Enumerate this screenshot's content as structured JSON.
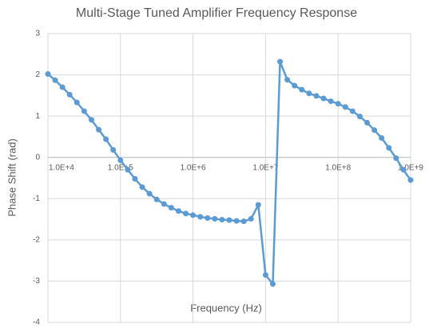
{
  "chart_data": {
    "type": "line",
    "title": "Multi-Stage Tuned Amplifier Frequency Response",
    "xlabel": "Frequency (Hz)",
    "ylabel": "Phase Shift (rad)",
    "xscale": "log",
    "grid": true,
    "xlim": [
      10000,
      1000000000
    ],
    "ylim": [
      -4,
      3
    ],
    "xticks": [
      {
        "value": 10000,
        "label": "1.0E+4"
      },
      {
        "value": 100000,
        "label": "1.0E+5"
      },
      {
        "value": 1000000,
        "label": "1.0E+6"
      },
      {
        "value": 10000000,
        "label": "1.0E+7"
      },
      {
        "value": 100000000,
        "label": "1.0E+8"
      },
      {
        "value": 1000000000,
        "label": "1.0E+9"
      }
    ],
    "yticks": [
      -4,
      -3,
      -2,
      -1,
      0,
      1,
      2,
      3
    ],
    "x": [
      10000,
      12589,
      15849,
      19953,
      25119,
      31623,
      39811,
      50119,
      63096,
      79433,
      100000,
      125893,
      158489,
      199526,
      251189,
      316228,
      398107,
      501187,
      630957,
      794328,
      1000000,
      1258925,
      1584893,
      1995262,
      2511886,
      3162278,
      3981072,
      5011872,
      6309573,
      7943282,
      10000000,
      12589254,
      15848932,
      19952623,
      25118864,
      31622777,
      39810717,
      50118723,
      63095734,
      79432823,
      100000000,
      125892541,
      158489319,
      199526231,
      251188643,
      316227766,
      398107171,
      501187234,
      630957344,
      794328235,
      1000000000
    ],
    "series": [
      {
        "name": "Phase Shift",
        "color": "#5b9bd5",
        "values": [
          2.02,
          1.87,
          1.7,
          1.52,
          1.33,
          1.12,
          0.91,
          0.67,
          0.44,
          0.18,
          -0.07,
          -0.3,
          -0.52,
          -0.72,
          -0.88,
          -1.02,
          -1.13,
          -1.22,
          -1.3,
          -1.36,
          -1.4,
          -1.44,
          -1.47,
          -1.49,
          -1.51,
          -1.52,
          -1.54,
          -1.55,
          -1.49,
          -1.15,
          -2.85,
          -3.07,
          2.32,
          1.88,
          1.74,
          1.64,
          1.55,
          1.49,
          1.43,
          1.36,
          1.3,
          1.22,
          1.12,
          0.99,
          0.84,
          0.66,
          0.47,
          0.23,
          -0.02,
          -0.3,
          -0.55
        ]
      }
    ]
  }
}
